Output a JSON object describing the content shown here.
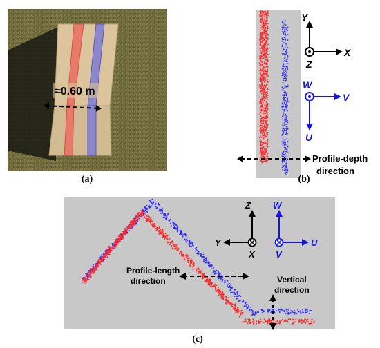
{
  "panel_a": {
    "caption": "(a)",
    "width_label": "≈0.60 m"
  },
  "panel_b": {
    "caption": "(b)",
    "axes_xyz": {
      "y": "Y",
      "x": "X",
      "z": "Z"
    },
    "axes_uvw": {
      "w": "W",
      "v": "V",
      "u": "U"
    },
    "profile_depth_line1": "Profile-depth",
    "profile_depth_line2": "direction"
  },
  "panel_c": {
    "caption": "(c)",
    "axes_xyz": {
      "z": "Z",
      "y": "Y",
      "x": "X"
    },
    "axes_uvw": {
      "w": "W",
      "v": "V",
      "u": "U"
    },
    "profile_length_line1": "Profile-length",
    "profile_length_line2": "direction",
    "vertical_line1": "Vertical",
    "vertical_line2": "direction"
  },
  "colors": {
    "red_points": "#ff2a2a",
    "blue_points": "#2a2aff",
    "panel_gray": "#c8c8c8",
    "grass": "#6e6a3a",
    "board": "#d9c39a",
    "stripe_red": "#e8786a",
    "stripe_blue": "#8a86c8"
  }
}
